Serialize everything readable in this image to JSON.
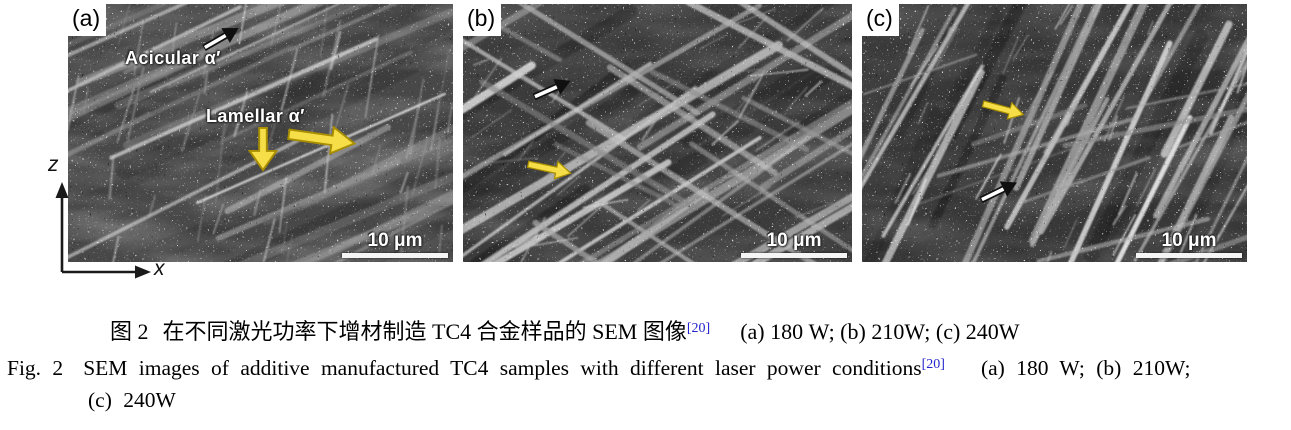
{
  "figure": {
    "panels": [
      {
        "label": "(a)",
        "scale_bar": "10 μm"
      },
      {
        "label": "(b)",
        "scale_bar": "10 μm"
      },
      {
        "label": "(c)",
        "scale_bar": "10 μm"
      }
    ],
    "annotations": {
      "acicular": "Acicular α′",
      "lamellar": "Lamellar α′"
    },
    "axes": {
      "vertical_label": "z",
      "horizontal_label": "x"
    }
  },
  "caption": {
    "zh": {
      "fig_no": "图 2",
      "text": "在不同激光功率下增材制造 TC4 合金样品的 SEM 图像",
      "citation": "[20]",
      "conditions": "(a) 180 W; (b) 210W; (c) 240W"
    },
    "en": {
      "fig_no": "Fig. 2",
      "text": "SEM images of additive manufactured TC4 samples with different laser power conditions",
      "citation": "[20]",
      "conditions": "(a) 180 W; (b) 210W;",
      "conditions_cont": "(c) 240W"
    }
  },
  "colors": {
    "citation_blue": "#2424cc",
    "arrow_yellow": "#f6de48",
    "micrograph_gray": "#424242"
  }
}
